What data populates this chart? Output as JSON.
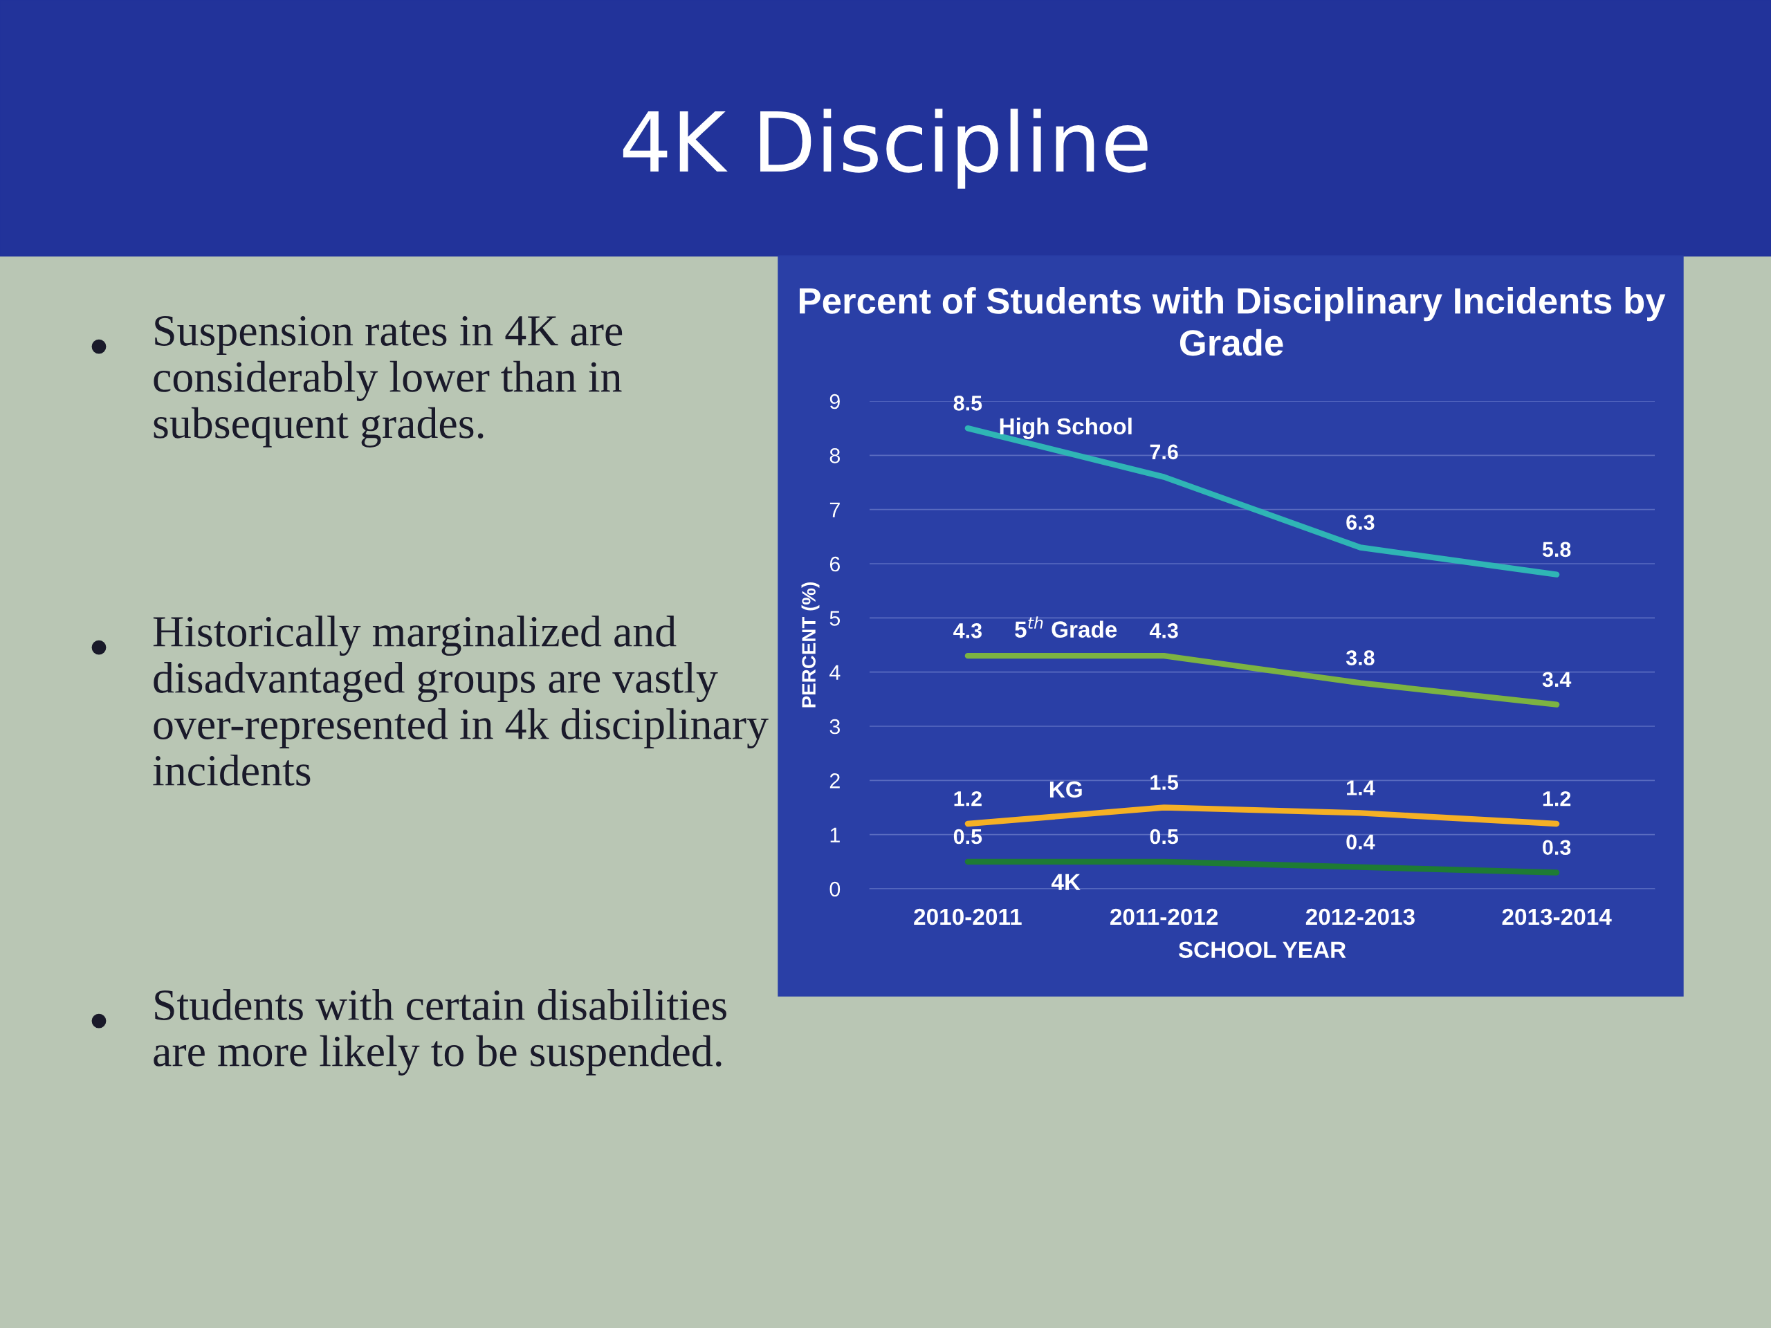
{
  "chart_data": {
    "type": "line",
    "title": "4K Discipline",
    "subtitle": "Percent of Students with Disciplinary Incidents by Grade",
    "xlabel": "SCHOOL YEAR",
    "ylabel": "PERCENT (%)",
    "categories": [
      "2010-2011",
      "2011-2012",
      "2012-2013",
      "2013-2014"
    ],
    "series": [
      {
        "name": "High School",
        "color": "#2fb5b5",
        "values": [
          8.5,
          7.6,
          6.3,
          5.8
        ]
      },
      {
        "name": "5$^{th}$ Grade",
        "color": "#7cb342",
        "values": [
          4.3,
          4.3,
          3.8,
          3.4
        ]
      },
      {
        "name": "KG",
        "color": "#f5b025",
        "values": [
          1.2,
          1.5,
          1.4,
          1.2
        ]
      },
      {
        "name": "4K",
        "color": "#1e7b34",
        "values": [
          0.5,
          0.5,
          0.4,
          0.3
        ]
      }
    ],
    "ylim": [
      0,
      9
    ],
    "yticks": [
      0,
      1,
      2,
      3,
      4,
      5,
      6,
      7,
      8,
      9
    ],
    "grid": "y",
    "data_labels": true,
    "marker": "none",
    "line_style": "solid",
    "annotations": [
      "Suspension rates in 4K are considerably lower than in subsequent grades.",
      "Historically marginalized and disadvantaged groups are vastly over-represented in 4k disciplinary incidents",
      "Students with certain disabilities are more likely to be suspended."
    ]
  }
}
